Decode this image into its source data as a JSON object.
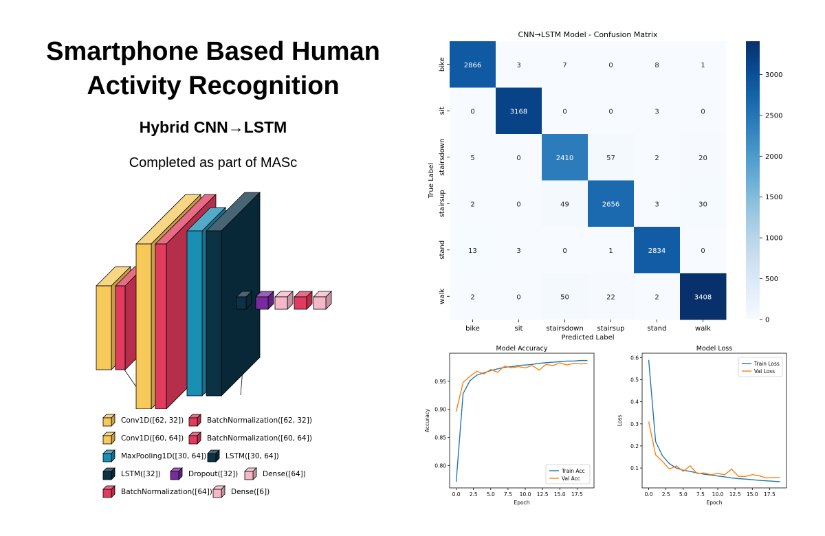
{
  "header": {
    "title": "Smartphone Based Human Activity Recognition",
    "subtitle": "Hybrid CNN→LSTM",
    "caption": "Completed as part of MASc"
  },
  "colors": {
    "conv": "#f7c85a",
    "batchnorm": "#e23b5e",
    "maxpool": "#1a8fb4",
    "lstm": "#0b3245",
    "dropout": "#7a2aa0",
    "dense": "#f6b8c9",
    "train": "#1f77b4",
    "val": "#ff7f0e"
  },
  "architecture_legend": [
    {
      "label": "Conv1D([62, 32])",
      "color": "#f7c85a"
    },
    {
      "label": "BatchNormalization([62, 32])",
      "color": "#e23b5e"
    },
    {
      "label": "Conv1D([60, 64])",
      "color": "#f7c85a"
    },
    {
      "label": "BatchNormalization([60, 64])",
      "color": "#e23b5e"
    },
    {
      "label": "MaxPooling1D([30, 64])",
      "color": "#1a8fb4"
    },
    {
      "label": "LSTM([30, 64])",
      "color": "#0b3245"
    },
    {
      "label": "LSTM([32])",
      "color": "#0b3245"
    },
    {
      "label": "Dropout([32])",
      "color": "#7a2aa0"
    },
    {
      "label": "Dense([64])",
      "color": "#f6b8c9"
    },
    {
      "label": "BatchNormalization([64])",
      "color": "#e23b5e"
    },
    {
      "label": "Dense([6])",
      "color": "#f6b8c9"
    }
  ],
  "chart_data": [
    {
      "type": "heatmap",
      "title": "CNN→LSTM Model - Confusion Matrix",
      "xlabel": "Predicted Label",
      "ylabel": "True Label",
      "x": [
        "bike",
        "sit",
        "stairsdown",
        "stairsup",
        "stand",
        "walk"
      ],
      "y": [
        "bike",
        "sit",
        "stairsdown",
        "stairsup",
        "stand",
        "walk"
      ],
      "values": [
        [
          2866,
          3,
          7,
          0,
          8,
          1
        ],
        [
          0,
          3168,
          0,
          0,
          3,
          0
        ],
        [
          5,
          0,
          2410,
          57,
          2,
          20
        ],
        [
          2,
          0,
          49,
          2656,
          3,
          30
        ],
        [
          13,
          3,
          0,
          1,
          2834,
          0
        ],
        [
          2,
          0,
          50,
          22,
          2,
          3408
        ]
      ],
      "colorbar": {
        "min": 0,
        "max": 3408,
        "ticks": [
          0,
          500,
          1000,
          1500,
          2000,
          2500,
          3000
        ],
        "colormap": "Blues"
      }
    },
    {
      "type": "line",
      "title": "Model Accuracy",
      "xlabel": "Epoch",
      "ylabel": "Accuracy",
      "xlim": [
        -0.95,
        19.95
      ],
      "ylim": [
        0.76,
        1.0
      ],
      "xticks": [
        "0.0",
        "2.5",
        "5.0",
        "7.5",
        "10.0",
        "12.5",
        "15.0",
        "17.5"
      ],
      "yticks": [
        "0.80",
        "0.85",
        "0.90",
        "0.95"
      ],
      "x": [
        0,
        1,
        2,
        3,
        4,
        5,
        6,
        7,
        8,
        9,
        10,
        11,
        12,
        13,
        14,
        15,
        16,
        17,
        18,
        19
      ],
      "legend": "bottom-right",
      "series": [
        {
          "name": "Train Acc",
          "color": "#1f77b4",
          "values": [
            0.771,
            0.928,
            0.951,
            0.961,
            0.965,
            0.969,
            0.972,
            0.975,
            0.976,
            0.978,
            0.979,
            0.98,
            0.982,
            0.983,
            0.984,
            0.985,
            0.986,
            0.986,
            0.987,
            0.987
          ]
        },
        {
          "name": "Val Acc",
          "color": "#ff7f0e",
          "values": [
            0.896,
            0.948,
            0.959,
            0.968,
            0.963,
            0.971,
            0.966,
            0.977,
            0.974,
            0.976,
            0.974,
            0.978,
            0.97,
            0.98,
            0.978,
            0.983,
            0.979,
            0.982,
            0.981,
            0.982
          ]
        }
      ]
    },
    {
      "type": "line",
      "title": "Model Loss",
      "xlabel": "Epoch",
      "ylabel": "Loss",
      "xlim": [
        -0.95,
        19.95
      ],
      "ylim": [
        0.01,
        0.62
      ],
      "xticks": [
        "0.0",
        "2.5",
        "5.0",
        "7.5",
        "10.0",
        "12.5",
        "15.0",
        "17.5"
      ],
      "yticks": [
        "0.1",
        "0.2",
        "0.3",
        "0.4",
        "0.5",
        "0.6"
      ],
      "x": [
        0,
        1,
        2,
        3,
        4,
        5,
        6,
        7,
        8,
        9,
        10,
        11,
        12,
        13,
        14,
        15,
        16,
        17,
        18,
        19
      ],
      "legend": "top-right",
      "series": [
        {
          "name": "Train Loss",
          "color": "#1f77b4",
          "values": [
            0.59,
            0.22,
            0.155,
            0.12,
            0.1,
            0.09,
            0.085,
            0.078,
            0.072,
            0.068,
            0.064,
            0.06,
            0.055,
            0.052,
            0.05,
            0.047,
            0.044,
            0.042,
            0.04,
            0.038
          ]
        },
        {
          "name": "Val Loss",
          "color": "#ff7f0e",
          "values": [
            0.31,
            0.16,
            0.13,
            0.095,
            0.11,
            0.085,
            0.11,
            0.075,
            0.078,
            0.07,
            0.075,
            0.07,
            0.095,
            0.062,
            0.062,
            0.07,
            0.065,
            0.055,
            0.057,
            0.057
          ]
        }
      ]
    }
  ]
}
